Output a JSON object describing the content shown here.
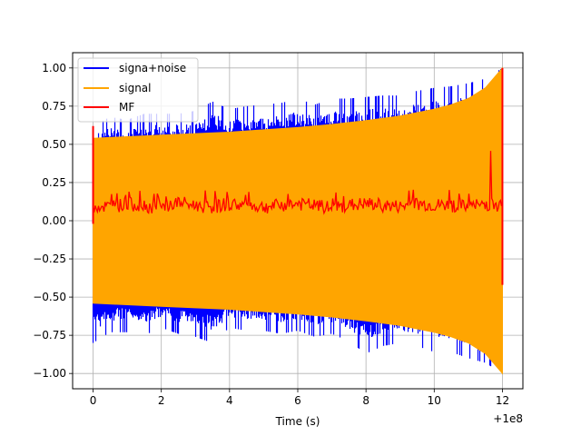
{
  "chart_data": {
    "type": "line",
    "title": "",
    "xlabel": "Time (s)",
    "ylabel": "",
    "x_offset_label": "+1e8",
    "xlim": [
      -0.6,
      12.6
    ],
    "ylim": [
      -1.1,
      1.1
    ],
    "grid": true,
    "legend_position": "top-left",
    "x_ticks": [
      0,
      2,
      4,
      6,
      8,
      10,
      12
    ],
    "x_tick_labels": [
      "0",
      "2",
      "4",
      "6",
      "8",
      "10",
      "12"
    ],
    "y_ticks": [
      1.0,
      0.75,
      0.5,
      0.25,
      0.0,
      -0.25,
      -0.5,
      -0.75,
      -1.0
    ],
    "y_tick_labels": [
      "1.00",
      "0.75",
      "0.50",
      "0.25",
      "0.00",
      "−0.25",
      "−0.50",
      "−0.75",
      "−1.00"
    ],
    "series": [
      {
        "name": "signa+noise",
        "color": "#0000ff",
        "x": [
          0,
          0.5,
          1,
          1.5,
          2,
          2.5,
          3,
          3.5,
          4,
          4.5,
          5,
          5.5,
          6,
          6.5,
          7,
          7.5,
          8,
          8.5,
          9,
          9.5,
          10,
          10.5,
          11,
          11.5,
          12
        ],
        "upper": [
          0.62,
          0.68,
          0.66,
          0.7,
          0.7,
          0.7,
          0.72,
          0.78,
          0.73,
          0.75,
          0.76,
          0.77,
          0.8,
          0.76,
          0.8,
          0.8,
          0.81,
          0.82,
          0.82,
          0.85,
          0.87,
          0.88,
          0.9,
          0.93,
          1.0
        ],
        "lower": [
          -0.8,
          -0.73,
          -0.73,
          -0.75,
          -0.7,
          -0.74,
          -0.76,
          -0.8,
          -0.7,
          -0.72,
          -0.72,
          -0.74,
          -0.72,
          -0.76,
          -0.74,
          -0.79,
          -0.87,
          -0.82,
          -0.8,
          -0.82,
          -0.86,
          -0.86,
          -0.9,
          -0.93,
          -1.0
        ]
      },
      {
        "name": "signal",
        "color": "#ffa500",
        "x": [
          0,
          1,
          2,
          3,
          4,
          5,
          6,
          7,
          8,
          9,
          10,
          10.5,
          11,
          11.5,
          12
        ],
        "upper": [
          0.54,
          0.55,
          0.56,
          0.57,
          0.58,
          0.595,
          0.61,
          0.63,
          0.655,
          0.685,
          0.73,
          0.76,
          0.8,
          0.87,
          1.0
        ],
        "lower": [
          -0.54,
          -0.55,
          -0.56,
          -0.57,
          -0.58,
          -0.595,
          -0.61,
          -0.63,
          -0.655,
          -0.685,
          -0.73,
          -0.76,
          -0.8,
          -0.87,
          -1.0
        ]
      },
      {
        "name": "MF",
        "color": "#ff0000",
        "x": [
          0,
          0.5,
          1,
          1.5,
          2,
          2.5,
          3,
          3.5,
          4,
          4.5,
          5,
          5.5,
          6,
          6.5,
          7,
          7.5,
          8,
          8.5,
          9,
          9.5,
          10,
          10.5,
          11,
          11.5,
          12
        ],
        "mean": [
          0.1,
          0.09,
          0.11,
          0.1,
          0.08,
          0.12,
          0.1,
          0.09,
          0.11,
          0.1,
          0.09,
          0.1,
          0.11,
          0.1,
          0.08,
          0.1,
          0.11,
          0.1,
          0.09,
          0.11,
          0.1,
          0.1,
          0.09,
          0.11,
          0.1
        ],
        "max": [
          0.62,
          0.2,
          0.2,
          0.21,
          0.18,
          0.22,
          0.2,
          0.2,
          0.19,
          0.2,
          0.19,
          0.2,
          0.22,
          0.2,
          0.18,
          0.21,
          0.2,
          0.22,
          0.2,
          0.24,
          0.2,
          0.21,
          0.2,
          0.24,
          1.0
        ],
        "min": [
          -0.02,
          0.02,
          0.01,
          0.01,
          0.0,
          0.02,
          0.01,
          0.0,
          0.01,
          0.0,
          0.01,
          0.0,
          0.0,
          0.01,
          0.0,
          0.01,
          0.0,
          0.01,
          0.0,
          0.01,
          0.0,
          0.01,
          0.0,
          0.01,
          -0.42
        ]
      }
    ]
  }
}
